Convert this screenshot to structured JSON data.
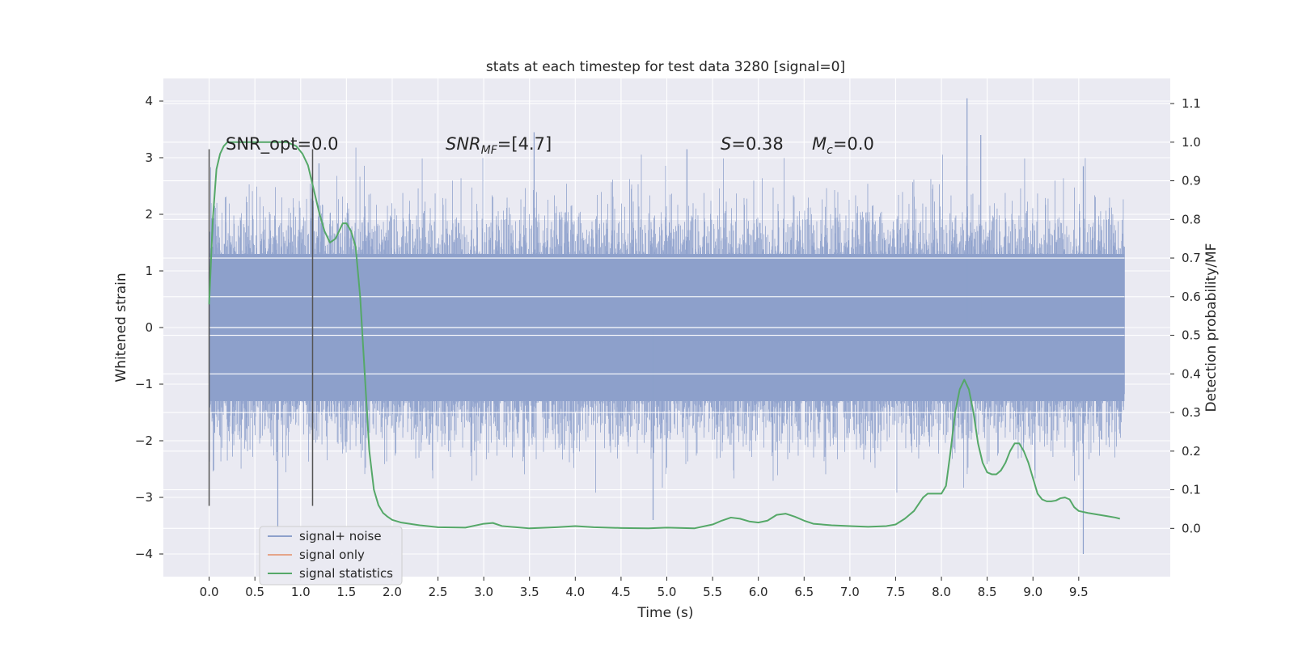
{
  "chart_data": {
    "type": "line",
    "title": "stats at each timestep for test data 3280 [signal=0]",
    "xlabel": "Time (s)",
    "ylabel": "Whitened strain",
    "y2label": "Detection probability/MF",
    "xlim": [
      -0.5,
      10.5
    ],
    "ylim": [
      -4.4,
      4.4
    ],
    "y2lim": [
      -0.125,
      1.165
    ],
    "xticks": [
      0.0,
      0.5,
      1.0,
      1.5,
      2.0,
      2.5,
      3.0,
      3.5,
      4.0,
      4.5,
      5.0,
      5.5,
      6.0,
      6.5,
      7.0,
      7.5,
      8.0,
      8.5,
      9.0,
      9.5
    ],
    "xtick_labels": [
      "0.0",
      "0.5",
      "1.0",
      "1.5",
      "2.0",
      "2.5",
      "3.0",
      "3.5",
      "4.0",
      "4.5",
      "5.0",
      "5.5",
      "6.0",
      "6.5",
      "7.0",
      "7.5",
      "8.0",
      "8.5",
      "9.0",
      "9.5"
    ],
    "yticks": [
      4,
      3,
      2,
      1,
      0,
      -1,
      -2,
      -3,
      -4
    ],
    "ytick_labels": [
      "4",
      "3",
      "2",
      "1",
      "0",
      "−1",
      "−2",
      "−3",
      "−4"
    ],
    "y2ticks": [
      1.1,
      1.0,
      0.9,
      0.8,
      0.7,
      0.6,
      0.5,
      0.4,
      0.3,
      0.2,
      0.1,
      0.0
    ],
    "y2tick_labels": [
      "1.1",
      "1.0",
      "0.9",
      "0.8",
      "0.7",
      "0.6",
      "0.5",
      "0.4",
      "0.3",
      "0.2",
      "0.1",
      "0.0"
    ],
    "grid": true,
    "legend_position": "lower-left",
    "series": [
      {
        "name": "signal+ noise",
        "axis": "left",
        "kind": "noise-band",
        "color": "#8da0cb",
        "x_range": [
          0.0,
          10.0
        ],
        "typical_amplitude": 1.3,
        "peak_amplitude": 4.0,
        "sample_rate_hz": 2048
      },
      {
        "name": "signal only",
        "axis": "left",
        "color": "#e5a58a",
        "x": [],
        "y": []
      },
      {
        "name": "signal statistics",
        "axis": "right",
        "color": "#55a868",
        "x": [
          0.0,
          0.04,
          0.08,
          0.12,
          0.16,
          0.2,
          0.3,
          0.5,
          0.7,
          0.85,
          0.95,
          1.02,
          1.08,
          1.12,
          1.16,
          1.2,
          1.26,
          1.32,
          1.38,
          1.42,
          1.46,
          1.5,
          1.55,
          1.6,
          1.65,
          1.7,
          1.75,
          1.8,
          1.85,
          1.9,
          1.95,
          2.0,
          2.1,
          2.3,
          2.5,
          2.8,
          3.0,
          3.1,
          3.2,
          3.5,
          3.8,
          4.0,
          4.2,
          4.5,
          4.8,
          5.0,
          5.3,
          5.5,
          5.6,
          5.7,
          5.8,
          5.9,
          6.0,
          6.1,
          6.2,
          6.3,
          6.4,
          6.5,
          6.6,
          6.8,
          7.0,
          7.2,
          7.4,
          7.5,
          7.6,
          7.7,
          7.8,
          7.85,
          7.95,
          8.0,
          8.05,
          8.1,
          8.15,
          8.2,
          8.25,
          8.3,
          8.35,
          8.4,
          8.45,
          8.5,
          8.55,
          8.6,
          8.65,
          8.7,
          8.75,
          8.8,
          8.85,
          8.9,
          8.95,
          9.0,
          9.05,
          9.1,
          9.15,
          9.2,
          9.25,
          9.3,
          9.35,
          9.4,
          9.45,
          9.5,
          9.6,
          9.7,
          9.8,
          9.9,
          9.95
        ],
        "y": [
          0.58,
          0.8,
          0.93,
          0.97,
          0.99,
          1.0,
          1.0,
          1.0,
          1.0,
          1.0,
          0.99,
          0.97,
          0.94,
          0.9,
          0.86,
          0.82,
          0.77,
          0.74,
          0.75,
          0.77,
          0.79,
          0.79,
          0.77,
          0.73,
          0.6,
          0.4,
          0.2,
          0.1,
          0.06,
          0.04,
          0.03,
          0.022,
          0.015,
          0.008,
          0.003,
          0.002,
          0.012,
          0.014,
          0.006,
          0.0,
          0.003,
          0.006,
          0.003,
          0.001,
          0.0,
          0.002,
          0.0,
          0.01,
          0.02,
          0.028,
          0.025,
          0.018,
          0.015,
          0.02,
          0.035,
          0.038,
          0.03,
          0.02,
          0.012,
          0.008,
          0.006,
          0.004,
          0.006,
          0.01,
          0.025,
          0.045,
          0.08,
          0.09,
          0.09,
          0.09,
          0.11,
          0.2,
          0.3,
          0.36,
          0.385,
          0.36,
          0.3,
          0.22,
          0.17,
          0.145,
          0.14,
          0.14,
          0.15,
          0.17,
          0.2,
          0.22,
          0.22,
          0.2,
          0.17,
          0.13,
          0.09,
          0.075,
          0.07,
          0.07,
          0.072,
          0.078,
          0.08,
          0.075,
          0.055,
          0.045,
          0.04,
          0.036,
          0.032,
          0.028,
          0.025
        ]
      }
    ],
    "vlines": [
      {
        "x": 0.0,
        "ymin": -3.15,
        "ymax": 3.15,
        "color": "#555555"
      },
      {
        "x": 1.13,
        "ymin": -3.15,
        "ymax": 3.15,
        "color": "#555555"
      }
    ],
    "annotations": [
      {
        "id": "snr_opt",
        "text": "SNR_opt=0.0",
        "x": 0.2,
        "y": 3.2
      },
      {
        "id": "snr_mf",
        "main": "SNR",
        "sub": "MF",
        "eq": "=[4.7]",
        "x": 2.6,
        "y": 3.2
      },
      {
        "id": "s_val",
        "main": "S",
        "eq": "=0.38",
        "x": 5.62,
        "y": 3.2
      },
      {
        "id": "mc_val",
        "main": "M",
        "sub": "c",
        "eq": "=0.0",
        "x": 6.62,
        "y": 3.2
      }
    ]
  },
  "legend": {
    "items": [
      {
        "label": "signal+ noise",
        "color": "#8da0cb"
      },
      {
        "label": "signal only",
        "color": "#e5a58a"
      },
      {
        "label": "signal statistics",
        "color": "#55a868"
      }
    ]
  }
}
